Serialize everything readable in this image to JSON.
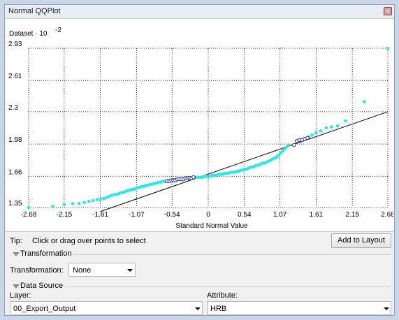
{
  "window": {
    "title": "Normal QQPlot",
    "close_icon": "close-icon"
  },
  "chart_data": {
    "type": "scatter",
    "ylabel": "Dataset · 10",
    "ylabel_exponent": "-2",
    "xlabel": "Standard Normal Value",
    "xlim": [
      -2.68,
      2.68
    ],
    "ylim": [
      1.35,
      2.93
    ],
    "xticks": [
      "-2.68",
      "-2.15",
      "-1.61",
      "-1.07",
      "-0.54",
      "0",
      "0.54",
      "1.07",
      "1.61",
      "2.15",
      "2.68"
    ],
    "yticks": [
      "1.35",
      "1.66",
      "1.98",
      "2.3",
      "2.61",
      "2.93"
    ],
    "grid": true,
    "colors": {
      "points": "#2ee6e6",
      "selected_outline": "#1a1a8c",
      "reference_line": "#000000"
    },
    "reference_line": [
      [
        -1.61,
        1.31
      ],
      [
        2.68,
        2.3
      ]
    ],
    "points": [
      [
        -2.68,
        1.35
      ],
      [
        -2.32,
        1.36
      ],
      [
        -2.15,
        1.38
      ],
      [
        -2.02,
        1.39
      ],
      [
        -1.93,
        1.39
      ],
      [
        -1.85,
        1.4
      ],
      [
        -1.78,
        1.41
      ],
      [
        -1.72,
        1.42
      ],
      [
        -1.66,
        1.43
      ],
      [
        -1.61,
        1.43
      ],
      [
        -1.56,
        1.44
      ],
      [
        -1.52,
        1.45
      ],
      [
        -1.48,
        1.46
      ],
      [
        -1.44,
        1.47
      ],
      [
        -1.4,
        1.48
      ],
      [
        -1.36,
        1.48
      ],
      [
        -1.33,
        1.49
      ],
      [
        -1.29,
        1.5
      ],
      [
        -1.26,
        1.5
      ],
      [
        -1.23,
        1.51
      ],
      [
        -1.2,
        1.52
      ],
      [
        -1.17,
        1.52
      ],
      [
        -1.14,
        1.53
      ],
      [
        -1.11,
        1.53
      ],
      [
        -1.08,
        1.54
      ],
      [
        -1.05,
        1.55
      ],
      [
        -1.02,
        1.55
      ],
      [
        -0.99,
        1.56
      ],
      [
        -0.96,
        1.56
      ],
      [
        -0.93,
        1.57
      ],
      [
        -0.9,
        1.57
      ],
      [
        -0.87,
        1.58
      ],
      [
        -0.84,
        1.58
      ],
      [
        -0.81,
        1.59
      ],
      [
        -0.78,
        1.59
      ],
      [
        -0.75,
        1.6
      ],
      [
        -0.72,
        1.6
      ],
      [
        -0.69,
        1.61
      ],
      [
        -0.66,
        1.61
      ],
      [
        -0.63,
        1.61
      ],
      [
        -0.6,
        1.62
      ],
      [
        -0.57,
        1.62
      ],
      [
        -0.54,
        1.62
      ],
      [
        -0.51,
        1.62
      ],
      [
        -0.48,
        1.63
      ],
      [
        -0.45,
        1.63
      ],
      [
        -0.42,
        1.63
      ],
      [
        -0.39,
        1.63
      ],
      [
        -0.36,
        1.64
      ],
      [
        -0.33,
        1.64
      ],
      [
        -0.3,
        1.64
      ],
      [
        -0.27,
        1.64
      ],
      [
        -0.24,
        1.64
      ],
      [
        -0.21,
        1.65
      ],
      [
        -0.18,
        1.65
      ],
      [
        -0.15,
        1.65
      ],
      [
        -0.12,
        1.65
      ],
      [
        -0.09,
        1.65
      ],
      [
        -0.06,
        1.66
      ],
      [
        -0.03,
        1.66
      ],
      [
        0.0,
        1.66
      ],
      [
        0.03,
        1.66
      ],
      [
        0.06,
        1.67
      ],
      [
        0.09,
        1.67
      ],
      [
        0.12,
        1.67
      ],
      [
        0.15,
        1.68
      ],
      [
        0.18,
        1.68
      ],
      [
        0.21,
        1.68
      ],
      [
        0.24,
        1.69
      ],
      [
        0.27,
        1.69
      ],
      [
        0.3,
        1.69
      ],
      [
        0.33,
        1.7
      ],
      [
        0.36,
        1.7
      ],
      [
        0.39,
        1.7
      ],
      [
        0.42,
        1.71
      ],
      [
        0.45,
        1.71
      ],
      [
        0.48,
        1.72
      ],
      [
        0.51,
        1.72
      ],
      [
        0.54,
        1.73
      ],
      [
        0.57,
        1.73
      ],
      [
        0.6,
        1.74
      ],
      [
        0.63,
        1.75
      ],
      [
        0.66,
        1.75
      ],
      [
        0.69,
        1.76
      ],
      [
        0.72,
        1.77
      ],
      [
        0.75,
        1.77
      ],
      [
        0.78,
        1.78
      ],
      [
        0.81,
        1.79
      ],
      [
        0.84,
        1.79
      ],
      [
        0.87,
        1.8
      ],
      [
        0.9,
        1.81
      ],
      [
        0.93,
        1.82
      ],
      [
        0.96,
        1.83
      ],
      [
        0.99,
        1.84
      ],
      [
        1.02,
        1.85
      ],
      [
        1.05,
        1.87
      ],
      [
        1.08,
        1.89
      ],
      [
        1.11,
        1.91
      ],
      [
        1.14,
        1.93
      ],
      [
        1.17,
        1.95
      ],
      [
        1.2,
        1.97
      ],
      [
        1.5,
        2.05
      ],
      [
        1.55,
        2.07
      ],
      [
        1.61,
        2.09
      ],
      [
        1.68,
        2.11
      ],
      [
        1.76,
        2.14
      ],
      [
        1.84,
        2.15
      ],
      [
        1.93,
        2.16
      ],
      [
        2.05,
        2.21
      ],
      [
        2.33,
        2.4
      ],
      [
        2.68,
        2.93
      ]
    ],
    "selected_points": [
      [
        -0.62,
        1.61
      ],
      [
        -0.58,
        1.61
      ],
      [
        -0.55,
        1.62
      ],
      [
        -0.52,
        1.62
      ],
      [
        -0.49,
        1.62
      ],
      [
        -0.46,
        1.63
      ],
      [
        -0.43,
        1.63
      ],
      [
        -0.4,
        1.63
      ],
      [
        -0.37,
        1.63
      ],
      [
        -0.34,
        1.64
      ],
      [
        -0.31,
        1.64
      ],
      [
        -0.28,
        1.64
      ],
      [
        -0.25,
        1.64
      ],
      [
        -0.22,
        1.65
      ],
      [
        1.28,
        1.97
      ],
      [
        1.32,
        2.01
      ],
      [
        1.36,
        2.02
      ],
      [
        1.4,
        2.02
      ],
      [
        1.44,
        2.03
      ],
      [
        1.48,
        2.04
      ]
    ]
  },
  "tip": {
    "label": "Tip:",
    "text": "Click or drag over points to select"
  },
  "add_to_layout": "Add to Layout",
  "transformation_section": {
    "header": "Transformation",
    "label": "Transformation:",
    "value": "None"
  },
  "data_source_section": {
    "header": "Data Source",
    "layer_label": "Layer:",
    "layer_value": "00_Export_Output",
    "attribute_label": "Attribute:",
    "attribute_value": "HRB"
  }
}
